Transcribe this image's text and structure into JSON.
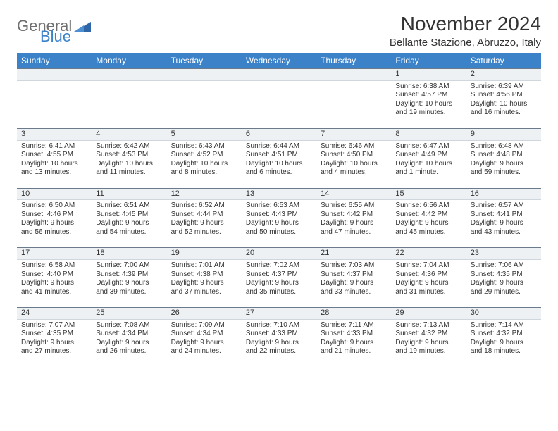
{
  "logo": {
    "general": "General",
    "blue": "Blue"
  },
  "title": "November 2024",
  "location": "Bellante Stazione, Abruzzo, Italy",
  "colors": {
    "header_bg": "#3b82c9",
    "header_fg": "#ffffff",
    "daynum_bg": "#eef1f4",
    "daynum_border_top": "#6b7b8c",
    "text": "#333333",
    "logo_gray": "#6f6f6f",
    "logo_blue": "#3b82c9"
  },
  "dayHeaders": [
    "Sunday",
    "Monday",
    "Tuesday",
    "Wednesday",
    "Thursday",
    "Friday",
    "Saturday"
  ],
  "weeks": [
    [
      {
        "n": "",
        "sunrise": "",
        "sunset": "",
        "daylight": ""
      },
      {
        "n": "",
        "sunrise": "",
        "sunset": "",
        "daylight": ""
      },
      {
        "n": "",
        "sunrise": "",
        "sunset": "",
        "daylight": ""
      },
      {
        "n": "",
        "sunrise": "",
        "sunset": "",
        "daylight": ""
      },
      {
        "n": "",
        "sunrise": "",
        "sunset": "",
        "daylight": ""
      },
      {
        "n": "1",
        "sunrise": "Sunrise: 6:38 AM",
        "sunset": "Sunset: 4:57 PM",
        "daylight": "Daylight: 10 hours and 19 minutes."
      },
      {
        "n": "2",
        "sunrise": "Sunrise: 6:39 AM",
        "sunset": "Sunset: 4:56 PM",
        "daylight": "Daylight: 10 hours and 16 minutes."
      }
    ],
    [
      {
        "n": "3",
        "sunrise": "Sunrise: 6:41 AM",
        "sunset": "Sunset: 4:55 PM",
        "daylight": "Daylight: 10 hours and 13 minutes."
      },
      {
        "n": "4",
        "sunrise": "Sunrise: 6:42 AM",
        "sunset": "Sunset: 4:53 PM",
        "daylight": "Daylight: 10 hours and 11 minutes."
      },
      {
        "n": "5",
        "sunrise": "Sunrise: 6:43 AM",
        "sunset": "Sunset: 4:52 PM",
        "daylight": "Daylight: 10 hours and 8 minutes."
      },
      {
        "n": "6",
        "sunrise": "Sunrise: 6:44 AM",
        "sunset": "Sunset: 4:51 PM",
        "daylight": "Daylight: 10 hours and 6 minutes."
      },
      {
        "n": "7",
        "sunrise": "Sunrise: 6:46 AM",
        "sunset": "Sunset: 4:50 PM",
        "daylight": "Daylight: 10 hours and 4 minutes."
      },
      {
        "n": "8",
        "sunrise": "Sunrise: 6:47 AM",
        "sunset": "Sunset: 4:49 PM",
        "daylight": "Daylight: 10 hours and 1 minute."
      },
      {
        "n": "9",
        "sunrise": "Sunrise: 6:48 AM",
        "sunset": "Sunset: 4:48 PM",
        "daylight": "Daylight: 9 hours and 59 minutes."
      }
    ],
    [
      {
        "n": "10",
        "sunrise": "Sunrise: 6:50 AM",
        "sunset": "Sunset: 4:46 PM",
        "daylight": "Daylight: 9 hours and 56 minutes."
      },
      {
        "n": "11",
        "sunrise": "Sunrise: 6:51 AM",
        "sunset": "Sunset: 4:45 PM",
        "daylight": "Daylight: 9 hours and 54 minutes."
      },
      {
        "n": "12",
        "sunrise": "Sunrise: 6:52 AM",
        "sunset": "Sunset: 4:44 PM",
        "daylight": "Daylight: 9 hours and 52 minutes."
      },
      {
        "n": "13",
        "sunrise": "Sunrise: 6:53 AM",
        "sunset": "Sunset: 4:43 PM",
        "daylight": "Daylight: 9 hours and 50 minutes."
      },
      {
        "n": "14",
        "sunrise": "Sunrise: 6:55 AM",
        "sunset": "Sunset: 4:42 PM",
        "daylight": "Daylight: 9 hours and 47 minutes."
      },
      {
        "n": "15",
        "sunrise": "Sunrise: 6:56 AM",
        "sunset": "Sunset: 4:42 PM",
        "daylight": "Daylight: 9 hours and 45 minutes."
      },
      {
        "n": "16",
        "sunrise": "Sunrise: 6:57 AM",
        "sunset": "Sunset: 4:41 PM",
        "daylight": "Daylight: 9 hours and 43 minutes."
      }
    ],
    [
      {
        "n": "17",
        "sunrise": "Sunrise: 6:58 AM",
        "sunset": "Sunset: 4:40 PM",
        "daylight": "Daylight: 9 hours and 41 minutes."
      },
      {
        "n": "18",
        "sunrise": "Sunrise: 7:00 AM",
        "sunset": "Sunset: 4:39 PM",
        "daylight": "Daylight: 9 hours and 39 minutes."
      },
      {
        "n": "19",
        "sunrise": "Sunrise: 7:01 AM",
        "sunset": "Sunset: 4:38 PM",
        "daylight": "Daylight: 9 hours and 37 minutes."
      },
      {
        "n": "20",
        "sunrise": "Sunrise: 7:02 AM",
        "sunset": "Sunset: 4:37 PM",
        "daylight": "Daylight: 9 hours and 35 minutes."
      },
      {
        "n": "21",
        "sunrise": "Sunrise: 7:03 AM",
        "sunset": "Sunset: 4:37 PM",
        "daylight": "Daylight: 9 hours and 33 minutes."
      },
      {
        "n": "22",
        "sunrise": "Sunrise: 7:04 AM",
        "sunset": "Sunset: 4:36 PM",
        "daylight": "Daylight: 9 hours and 31 minutes."
      },
      {
        "n": "23",
        "sunrise": "Sunrise: 7:06 AM",
        "sunset": "Sunset: 4:35 PM",
        "daylight": "Daylight: 9 hours and 29 minutes."
      }
    ],
    [
      {
        "n": "24",
        "sunrise": "Sunrise: 7:07 AM",
        "sunset": "Sunset: 4:35 PM",
        "daylight": "Daylight: 9 hours and 27 minutes."
      },
      {
        "n": "25",
        "sunrise": "Sunrise: 7:08 AM",
        "sunset": "Sunset: 4:34 PM",
        "daylight": "Daylight: 9 hours and 26 minutes."
      },
      {
        "n": "26",
        "sunrise": "Sunrise: 7:09 AM",
        "sunset": "Sunset: 4:34 PM",
        "daylight": "Daylight: 9 hours and 24 minutes."
      },
      {
        "n": "27",
        "sunrise": "Sunrise: 7:10 AM",
        "sunset": "Sunset: 4:33 PM",
        "daylight": "Daylight: 9 hours and 22 minutes."
      },
      {
        "n": "28",
        "sunrise": "Sunrise: 7:11 AM",
        "sunset": "Sunset: 4:33 PM",
        "daylight": "Daylight: 9 hours and 21 minutes."
      },
      {
        "n": "29",
        "sunrise": "Sunrise: 7:13 AM",
        "sunset": "Sunset: 4:32 PM",
        "daylight": "Daylight: 9 hours and 19 minutes."
      },
      {
        "n": "30",
        "sunrise": "Sunrise: 7:14 AM",
        "sunset": "Sunset: 4:32 PM",
        "daylight": "Daylight: 9 hours and 18 minutes."
      }
    ]
  ]
}
